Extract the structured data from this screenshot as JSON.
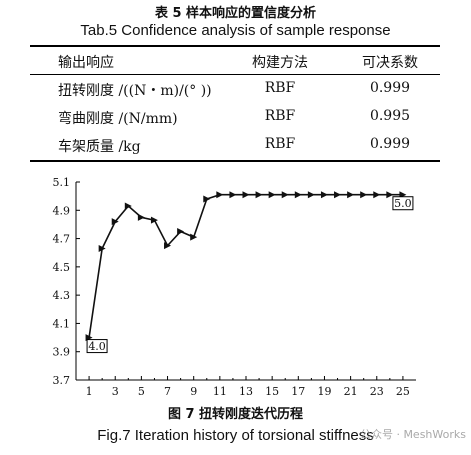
{
  "table": {
    "title_zh": "表 5  样本响应的置信度分析",
    "title_en": "Tab.5  Confidence analysis of sample response",
    "headers": [
      "输出响应",
      "构建方法",
      "可决系数"
    ],
    "rows": [
      [
        "扭转刚度 /((N・m)/(° ))",
        "RBF",
        "0.999"
      ],
      [
        "弯曲刚度 /(N/mm)",
        "RBF",
        "0.995"
      ],
      [
        "车架质量 /kg",
        "RBF",
        "0.999"
      ]
    ]
  },
  "figure": {
    "caption_zh": "图 7  扭转刚度迭代历程",
    "caption_en": "Fig.7  Iteration history of torsional stiffness"
  },
  "watermark": "公众号 · MeshWorks",
  "chart_data": {
    "type": "line",
    "x": [
      1,
      2,
      3,
      4,
      5,
      6,
      7,
      8,
      9,
      10,
      11,
      12,
      13,
      14,
      15,
      16,
      17,
      18,
      19,
      20,
      21,
      22,
      23,
      24,
      25
    ],
    "series": [
      {
        "values": [
          4.0,
          4.63,
          4.82,
          4.93,
          4.85,
          4.83,
          4.65,
          4.75,
          4.71,
          4.98,
          5.01,
          5.01,
          5.01,
          5.01,
          5.01,
          5.01,
          5.01,
          5.01,
          5.01,
          5.01,
          5.01,
          5.01,
          5.01,
          5.01,
          5.01
        ]
      }
    ],
    "xticks": [
      1,
      3,
      5,
      7,
      9,
      11,
      13,
      15,
      17,
      19,
      21,
      23,
      25
    ],
    "yticks": [
      "3.7",
      "3.9",
      "4.1",
      "4.3",
      "4.5",
      "4.7",
      "4.9",
      "5.1"
    ],
    "xlim": [
      0,
      26
    ],
    "ylim": [
      3.7,
      5.1
    ],
    "annotations": [
      {
        "x": 1,
        "y": 4.0,
        "text": "4.0"
      },
      {
        "x": 25,
        "y": 5.01,
        "text": "5.0"
      }
    ],
    "grid": false,
    "line_color": "#111111"
  }
}
